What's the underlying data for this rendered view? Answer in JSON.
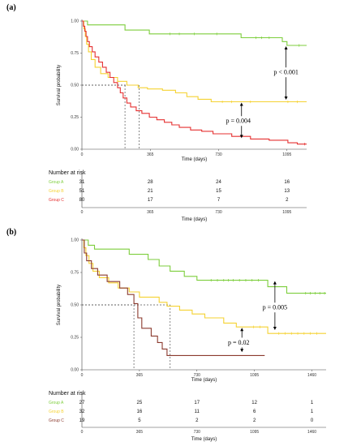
{
  "chart_data": [
    {
      "type": "line",
      "subtype": "kaplan-meier",
      "panel_label": "(a)",
      "xlabel": "Time (days)",
      "ylabel": "Survival probability",
      "xlim": [
        0,
        1200
      ],
      "ylim": [
        0,
        1
      ],
      "x_ticks": [
        0,
        365,
        730,
        1095
      ],
      "y_ticks": [
        "0.00",
        "0.25",
        "0.50",
        "0.75",
        "1.00"
      ],
      "series": [
        {
          "name": "Group A",
          "color": "#7dce3c",
          "steps": [
            [
              0,
              1.0
            ],
            [
              30,
              0.97
            ],
            [
              230,
              0.93
            ],
            [
              360,
              0.9
            ],
            [
              850,
              0.87
            ],
            [
              1070,
              0.84
            ],
            [
              1095,
              0.81
            ],
            [
              1200,
              0.81
            ]
          ],
          "censor": [
            470,
            520,
            600,
            720,
            930,
            960,
            1000,
            1160
          ]
        },
        {
          "name": "Group B",
          "color": "#f5d232",
          "steps": [
            [
              0,
              1.0
            ],
            [
              10,
              0.94
            ],
            [
              18,
              0.88
            ],
            [
              25,
              0.82
            ],
            [
              35,
              0.76
            ],
            [
              50,
              0.7
            ],
            [
              70,
              0.64
            ],
            [
              100,
              0.59
            ],
            [
              140,
              0.56
            ],
            [
              190,
              0.53
            ],
            [
              240,
              0.5
            ],
            [
              300,
              0.48
            ],
            [
              350,
              0.47
            ],
            [
              430,
              0.46
            ],
            [
              500,
              0.44
            ],
            [
              560,
              0.41
            ],
            [
              620,
              0.39
            ],
            [
              690,
              0.37
            ],
            [
              1200,
              0.37
            ]
          ],
          "censor": [
            750,
            800,
            900,
            1100,
            1150
          ]
        },
        {
          "name": "Group C",
          "color": "#e53030",
          "steps": [
            [
              0,
              1.0
            ],
            [
              8,
              0.96
            ],
            [
              15,
              0.92
            ],
            [
              22,
              0.88
            ],
            [
              30,
              0.84
            ],
            [
              40,
              0.8
            ],
            [
              55,
              0.76
            ],
            [
              70,
              0.72
            ],
            [
              90,
              0.68
            ],
            [
              110,
              0.64
            ],
            [
              130,
              0.6
            ],
            [
              150,
              0.56
            ],
            [
              170,
              0.52
            ],
            [
              190,
              0.48
            ],
            [
              205,
              0.44
            ],
            [
              220,
              0.4
            ],
            [
              240,
              0.36
            ],
            [
              260,
              0.33
            ],
            [
              290,
              0.3
            ],
            [
              320,
              0.28
            ],
            [
              360,
              0.25
            ],
            [
              400,
              0.23
            ],
            [
              440,
              0.21
            ],
            [
              480,
              0.19
            ],
            [
              520,
              0.17
            ],
            [
              580,
              0.15
            ],
            [
              640,
              0.14
            ],
            [
              700,
              0.12
            ],
            [
              800,
              0.1
            ],
            [
              900,
              0.08
            ],
            [
              1000,
              0.07
            ],
            [
              1100,
              0.05
            ],
            [
              1150,
              0.04
            ],
            [
              1200,
              0.04
            ]
          ],
          "censor": [
            1190
          ]
        }
      ],
      "median_lines": [
        {
          "x": 230,
          "y": 0.5
        },
        {
          "x": 305,
          "y": 0.5
        }
      ],
      "annotations": [
        {
          "text": "p < 0.001",
          "x": 1090,
          "y": 0.6,
          "arrow_from": 0.81,
          "arrow_to": 0.38
        },
        {
          "text": "p = 0.004",
          "x": 835,
          "y": 0.22,
          "arrow_from": 0.37,
          "arrow_to": 0.08
        }
      ],
      "risk_table": {
        "title": "Number at risk",
        "times": [
          0,
          365,
          730,
          1095
        ],
        "rows": [
          {
            "group": "Group A",
            "color": "#7dce3c",
            "values": [
              31,
              28,
              24,
              16
            ]
          },
          {
            "group": "Group B",
            "color": "#f5d232",
            "values": [
              51,
              21,
              15,
              13
            ]
          },
          {
            "group": "Group C",
            "color": "#e53030",
            "values": [
              80,
              17,
              7,
              2
            ]
          }
        ],
        "xlabel": "Time (days)"
      }
    },
    {
      "type": "line",
      "subtype": "kaplan-meier",
      "panel_label": "(b)",
      "xlabel": "Time (days)",
      "ylabel": "Survival probability",
      "xlim": [
        0,
        1550
      ],
      "ylim": [
        0,
        1
      ],
      "x_ticks": [
        0,
        365,
        730,
        1095,
        1460
      ],
      "y_ticks": [
        "0.00",
        "0.25",
        "0.50",
        "0.75",
        "1.00"
      ],
      "series": [
        {
          "name": "Group A",
          "color": "#7dce3c",
          "steps": [
            [
              0,
              1.0
            ],
            [
              40,
              0.96
            ],
            [
              80,
              0.93
            ],
            [
              300,
              0.89
            ],
            [
              420,
              0.85
            ],
            [
              490,
              0.8
            ],
            [
              560,
              0.76
            ],
            [
              650,
              0.72
            ],
            [
              730,
              0.69
            ],
            [
              1180,
              0.64
            ],
            [
              1300,
              0.59
            ],
            [
              1550,
              0.59
            ]
          ],
          "censor": [
            820,
            860,
            900,
            930,
            960,
            1000,
            1040,
            1080,
            1120,
            1420,
            1450,
            1480,
            1510,
            1540
          ]
        },
        {
          "name": "Group B",
          "color": "#f5d232",
          "steps": [
            [
              0,
              1.0
            ],
            [
              12,
              0.94
            ],
            [
              25,
              0.88
            ],
            [
              45,
              0.82
            ],
            [
              70,
              0.76
            ],
            [
              110,
              0.71
            ],
            [
              170,
              0.67
            ],
            [
              230,
              0.63
            ],
            [
              300,
              0.6
            ],
            [
              365,
              0.56
            ],
            [
              490,
              0.52
            ],
            [
              540,
              0.49
            ],
            [
              620,
              0.46
            ],
            [
              700,
              0.43
            ],
            [
              780,
              0.4
            ],
            [
              900,
              0.36
            ],
            [
              980,
              0.33
            ],
            [
              1180,
              0.28
            ],
            [
              1550,
              0.28
            ]
          ],
          "censor": [
            1090,
            1130,
            1250,
            1290,
            1330,
            1370,
            1410,
            1450,
            1490
          ]
        },
        {
          "name": "Group C",
          "color": "#8b3a2e",
          "steps": [
            [
              0,
              1.0
            ],
            [
              15,
              0.9
            ],
            [
              30,
              0.84
            ],
            [
              60,
              0.78
            ],
            [
              100,
              0.73
            ],
            [
              160,
              0.68
            ],
            [
              240,
              0.63
            ],
            [
              290,
              0.58
            ],
            [
              330,
              0.51
            ],
            [
              355,
              0.4
            ],
            [
              380,
              0.32
            ],
            [
              440,
              0.26
            ],
            [
              480,
              0.21
            ],
            [
              510,
              0.16
            ],
            [
              540,
              0.11
            ],
            [
              1160,
              0.11
            ]
          ],
          "censor": []
        }
      ],
      "median_lines": [
        {
          "x": 330,
          "y": 0.5
        },
        {
          "x": 560,
          "y": 0.5
        }
      ],
      "annotations": [
        {
          "text": "p = 0.005",
          "x": 1225,
          "y": 0.48,
          "arrow_from": 0.69,
          "arrow_to": 0.3
        },
        {
          "text": "p = 0.02",
          "x": 995,
          "y": 0.21,
          "arrow_from": 0.33,
          "arrow_to": 0.13
        }
      ],
      "risk_table": {
        "title": "Number at risk",
        "times": [
          0,
          365,
          730,
          1095,
          1460
        ],
        "rows": [
          {
            "group": "Group A",
            "color": "#7dce3c",
            "values": [
              27,
              25,
              17,
              12,
              1
            ]
          },
          {
            "group": "Group B",
            "color": "#f5d232",
            "values": [
              32,
              16,
              11,
              6,
              1
            ]
          },
          {
            "group": "Group C",
            "color": "#8b3a2e",
            "values": [
              19,
              5,
              2,
              2,
              0
            ]
          }
        ],
        "xlabel": "Time (days)"
      }
    }
  ]
}
